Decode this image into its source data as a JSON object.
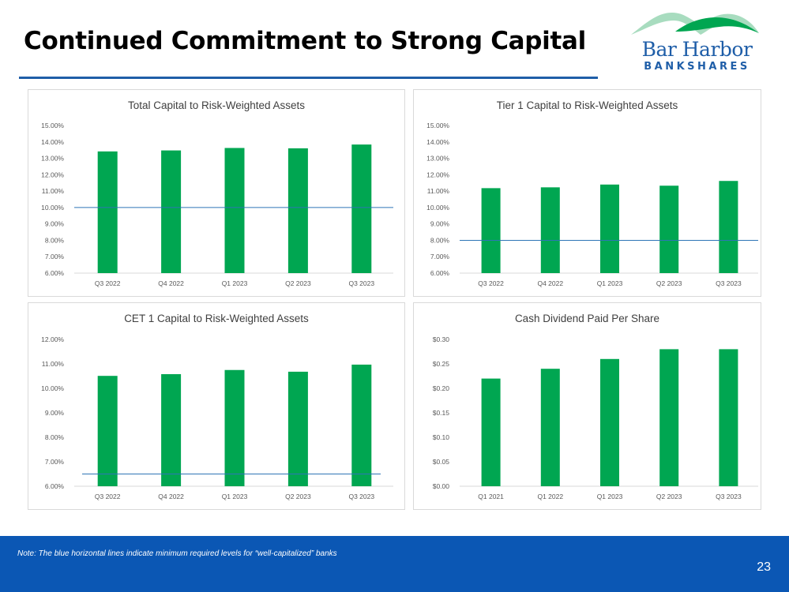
{
  "slide": {
    "title": "Continued Commitment to Strong Capital",
    "page_number": "23"
  },
  "logo": {
    "name": "Bar Harbor",
    "sub": "BANKSHARES"
  },
  "footer": {
    "note": "Note:  The blue horizontal lines indicate minimum required levels for “well-capitalized” banks"
  },
  "colors": {
    "bar": "#00a651",
    "threshold": "#2e75b6",
    "accent": "#1f5ea8",
    "footer_bg": "#0b57b4"
  },
  "chart_data": [
    {
      "type": "bar",
      "title": "Total Capital to Risk-Weighted Assets",
      "categories": [
        "Q3 2022",
        "Q4 2022",
        "Q1 2023",
        "Q2 2023",
        "Q3 2023"
      ],
      "values": [
        13.42,
        13.48,
        13.63,
        13.61,
        13.84
      ],
      "ylim": [
        6,
        15
      ],
      "ystep": 1,
      "tick_labels": [
        "6.00%",
        "7.00%",
        "8.00%",
        "9.00%",
        "10.00%",
        "11.00%",
        "12.00%",
        "13.00%",
        "14.00%",
        "15.00%"
      ],
      "threshold": 10,
      "xlabel": "",
      "ylabel": ""
    },
    {
      "type": "bar",
      "title": "Tier 1 Capital to Risk-Weighted Assets",
      "categories": [
        "Q3 2022",
        "Q4 2022",
        "Q1 2023",
        "Q2 2023",
        "Q3 2023"
      ],
      "values": [
        11.18,
        11.23,
        11.4,
        11.33,
        11.62
      ],
      "ylim": [
        6,
        15
      ],
      "ystep": 1,
      "tick_labels": [
        "6.00%",
        "7.00%",
        "8.00%",
        "9.00%",
        "10.00%",
        "11.00%",
        "12.00%",
        "13.00%",
        "14.00%",
        "15.00%"
      ],
      "threshold": 8,
      "xlabel": "",
      "ylabel": ""
    },
    {
      "type": "bar",
      "title": "CET 1 Capital to Risk-Weighted Assets",
      "categories": [
        "Q3 2022",
        "Q4 2022",
        "Q1 2023",
        "Q2 2023",
        "Q3 2023"
      ],
      "values": [
        10.51,
        10.58,
        10.75,
        10.68,
        10.97
      ],
      "ylim": [
        6,
        12
      ],
      "ystep": 1,
      "tick_labels": [
        "6.00%",
        "7.00%",
        "8.00%",
        "9.00%",
        "10.00%",
        "11.00%",
        "12.00%"
      ],
      "threshold": 6.5,
      "xlabel": "",
      "ylabel": ""
    },
    {
      "type": "bar",
      "title": "Cash Dividend Paid Per Share",
      "categories": [
        "Q1 2021",
        "Q1 2022",
        "Q1 2023",
        "Q2 2023",
        "Q3 2023"
      ],
      "values": [
        0.22,
        0.24,
        0.26,
        0.28,
        0.28
      ],
      "ylim": [
        0,
        0.3
      ],
      "ystep": 0.05,
      "tick_labels": [
        "$0.00",
        "$0.05",
        "$0.10",
        "$0.15",
        "$0.20",
        "$0.25",
        "$0.30"
      ],
      "threshold": null,
      "xlabel": "",
      "ylabel": ""
    }
  ]
}
